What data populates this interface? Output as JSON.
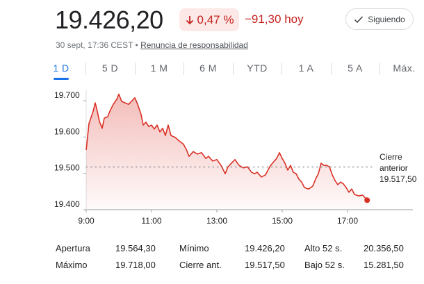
{
  "header": {
    "price": "19.426,20",
    "change_percent": "0,47 %",
    "change": "−91,30 hoy",
    "follow_button": "Siguiendo",
    "timestamp": "30 sept, 17:36 CEST",
    "disclaimer": "Renuncia de responsabilidad"
  },
  "ranges": [
    "1 D",
    "5 D",
    "1 M",
    "6 M",
    "YTD",
    "1 A",
    "5 A",
    "Máx."
  ],
  "chart_data": {
    "type": "line",
    "color": "#d93025",
    "x": [
      9,
      9.085,
      9.213,
      9.277,
      9.34,
      9.404,
      9.489,
      9.553,
      9.66,
      9.723,
      9.83,
      9.936,
      10.0,
      10.085,
      10.191,
      10.298,
      10.404,
      10.489,
      10.574,
      10.681,
      10.745,
      10.83,
      10.915,
      11.0,
      11.085,
      11.17,
      11.255,
      11.34,
      11.426,
      11.511,
      11.596,
      11.723,
      11.851,
      11.979,
      12.064,
      12.149,
      12.277,
      12.404,
      12.532,
      12.66,
      12.745,
      12.872,
      13.0,
      13.128,
      13.255,
      13.34,
      13.426,
      13.553,
      13.681,
      13.809,
      13.936,
      14.064,
      14.149,
      14.234,
      14.362,
      14.489,
      14.617,
      14.702,
      14.83,
      14.915,
      15.0,
      15.085,
      15.17,
      15.255,
      15.34,
      15.426,
      15.511,
      15.596,
      15.681,
      15.809,
      15.936,
      16.021,
      16.106,
      16.191,
      16.277,
      16.362,
      16.447,
      16.532,
      16.617,
      16.702,
      16.787,
      16.872,
      16.957,
      17.043,
      17.128,
      17.213,
      17.34,
      17.468,
      17.6
    ],
    "values": [
      19564.3,
      19637,
      19671,
      19694,
      19671,
      19643,
      19624,
      19652,
      19656,
      19671,
      19690,
      19704,
      19718,
      19698,
      19694,
      19690,
      19700,
      19708,
      19690,
      19662,
      19633,
      19641,
      19629,
      19633,
      19622,
      19633,
      19614,
      19624,
      19604,
      19633,
      19604,
      19599,
      19589,
      19580,
      19566,
      19547,
      19560,
      19553,
      19557,
      19541,
      19547,
      19534,
      19538,
      19522,
      19499,
      19518,
      19526,
      19538,
      19522,
      19515,
      19518,
      19503,
      19499,
      19503,
      19490,
      19496,
      19518,
      19528,
      19541,
      19557,
      19541,
      19528,
      19509,
      19522,
      19503,
      19499,
      19484,
      19476,
      19461,
      19457,
      19465,
      19484,
      19499,
      19528,
      19522,
      19522,
      19518,
      19496,
      19480,
      19469,
      19476,
      19471,
      19461,
      19448,
      19457,
      19442,
      19438,
      19440,
      19426.2
    ],
    "xlim": [
      9,
      19
    ],
    "xticks": [
      {
        "value": 9,
        "label": "9:00"
      },
      {
        "value": 11,
        "label": "11:00"
      },
      {
        "value": 13,
        "label": "13:00"
      },
      {
        "value": 15,
        "label": "15:00"
      },
      {
        "value": 17,
        "label": "17:00"
      }
    ],
    "ylim": [
      19400,
      19730
    ],
    "yticks": [
      {
        "value": 19400,
        "label": "19.400"
      },
      {
        "value": 19500,
        "label": "19.500"
      },
      {
        "value": 19600,
        "label": "19.600"
      },
      {
        "value": 19700,
        "label": "19.700"
      }
    ],
    "reference": {
      "label": "Cierre anterior",
      "value": 19517.5,
      "value_label": "19.517,50"
    }
  },
  "stats": [
    [
      "Apertura",
      "19.564,30",
      "Mínimo",
      "19.426,20",
      "Alto 52 s.",
      "20.356,50"
    ],
    [
      "Máximo",
      "19.718,00",
      "Cierre ant.",
      "19.517,50",
      "Bajo 52 s.",
      "15.281,50"
    ]
  ]
}
